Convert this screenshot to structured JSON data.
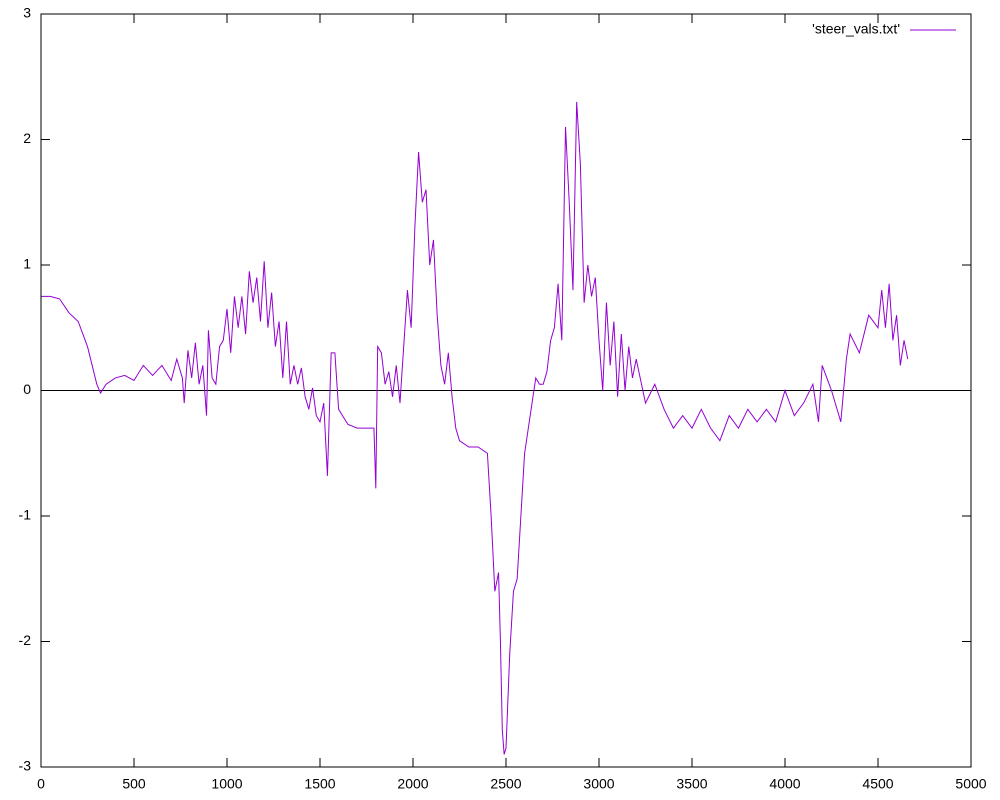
{
  "chart_data": {
    "type": "line",
    "legend": "top-right",
    "zeroaxis": true,
    "mirror_ticks": true,
    "x": [
      0,
      50,
      100,
      150,
      200,
      250,
      300,
      320,
      350,
      400,
      450,
      500,
      550,
      600,
      650,
      700,
      730,
      760,
      770,
      790,
      810,
      830,
      850,
      870,
      890,
      900,
      920,
      940,
      960,
      980,
      1000,
      1020,
      1040,
      1060,
      1080,
      1100,
      1120,
      1140,
      1160,
      1180,
      1200,
      1220,
      1240,
      1260,
      1280,
      1300,
      1320,
      1340,
      1360,
      1380,
      1400,
      1420,
      1440,
      1460,
      1480,
      1500,
      1520,
      1540,
      1560,
      1580,
      1600,
      1650,
      1700,
      1750,
      1790,
      1800,
      1810,
      1830,
      1850,
      1870,
      1890,
      1910,
      1930,
      1950,
      1970,
      1990,
      2010,
      2030,
      2050,
      2070,
      2090,
      2110,
      2130,
      2150,
      2170,
      2190,
      2210,
      2230,
      2250,
      2300,
      2350,
      2400,
      2420,
      2440,
      2460,
      2470,
      2480,
      2490,
      2500,
      2520,
      2540,
      2560,
      2580,
      2600,
      2620,
      2640,
      2660,
      2680,
      2700,
      2720,
      2740,
      2760,
      2780,
      2800,
      2820,
      2840,
      2860,
      2880,
      2900,
      2920,
      2940,
      2960,
      2980,
      3000,
      3020,
      3040,
      3060,
      3080,
      3100,
      3120,
      3140,
      3160,
      3180,
      3200,
      3250,
      3300,
      3350,
      3400,
      3450,
      3500,
      3550,
      3600,
      3650,
      3700,
      3750,
      3800,
      3850,
      3900,
      3950,
      4000,
      4050,
      4100,
      4150,
      4180,
      4200,
      4250,
      4300,
      4330,
      4350,
      4400,
      4450,
      4500,
      4520,
      4540,
      4560,
      4580,
      4600,
      4620,
      4640,
      4660
    ],
    "series": [
      {
        "name": "'steer_vals.txt'",
        "color": "#9400d3",
        "values": [
          0.75,
          0.75,
          0.73,
          0.62,
          0.55,
          0.35,
          0.05,
          -0.02,
          0.05,
          0.1,
          0.12,
          0.08,
          0.2,
          0.12,
          0.2,
          0.08,
          0.25,
          0.1,
          -0.1,
          0.32,
          0.1,
          0.38,
          0.05,
          0.2,
          -0.2,
          0.48,
          0.1,
          0.05,
          0.35,
          0.4,
          0.65,
          0.3,
          0.75,
          0.5,
          0.75,
          0.45,
          0.95,
          0.7,
          0.9,
          0.55,
          1.03,
          0.5,
          0.78,
          0.35,
          0.55,
          0.1,
          0.55,
          0.05,
          0.2,
          0.05,
          0.18,
          -0.05,
          -0.15,
          0.02,
          -0.2,
          -0.25,
          -0.1,
          -0.68,
          0.3,
          0.3,
          -0.15,
          -0.27,
          -0.3,
          -0.3,
          -0.3,
          -0.78,
          0.35,
          0.3,
          0.05,
          0.15,
          -0.05,
          0.2,
          -0.1,
          0.35,
          0.8,
          0.5,
          1.3,
          1.9,
          1.5,
          1.6,
          1.0,
          1.2,
          0.6,
          0.2,
          0.05,
          0.3,
          -0.05,
          -0.3,
          -0.4,
          -0.45,
          -0.45,
          -0.5,
          -1.0,
          -1.6,
          -1.45,
          -2.0,
          -2.7,
          -2.9,
          -2.85,
          -2.1,
          -1.6,
          -1.5,
          -1.0,
          -0.5,
          -0.3,
          -0.1,
          0.1,
          0.05,
          0.05,
          0.15,
          0.4,
          0.5,
          0.85,
          0.4,
          2.1,
          1.5,
          0.8,
          2.3,
          1.8,
          0.7,
          1.0,
          0.75,
          0.9,
          0.4,
          0.0,
          0.7,
          0.2,
          0.55,
          -0.05,
          0.45,
          0.0,
          0.35,
          0.1,
          0.25,
          -0.1,
          0.05,
          -0.15,
          -0.3,
          -0.2,
          -0.3,
          -0.15,
          -0.3,
          -0.4,
          -0.2,
          -0.3,
          -0.15,
          -0.25,
          -0.15,
          -0.25,
          0.0,
          -0.2,
          -0.1,
          0.05,
          -0.25,
          0.2,
          0.0,
          -0.25,
          0.25,
          0.45,
          0.3,
          0.6,
          0.5,
          0.8,
          0.5,
          0.85,
          0.4,
          0.6,
          0.2,
          0.4,
          0.25
        ]
      }
    ],
    "xlim": [
      0,
      5000
    ],
    "xticks": [
      0,
      500,
      1000,
      1500,
      2000,
      2500,
      3000,
      3500,
      4000,
      4500,
      5000
    ],
    "ylim": [
      -3,
      3
    ],
    "yticks": [
      -3,
      -2,
      -1,
      0,
      1,
      2,
      3
    ]
  }
}
